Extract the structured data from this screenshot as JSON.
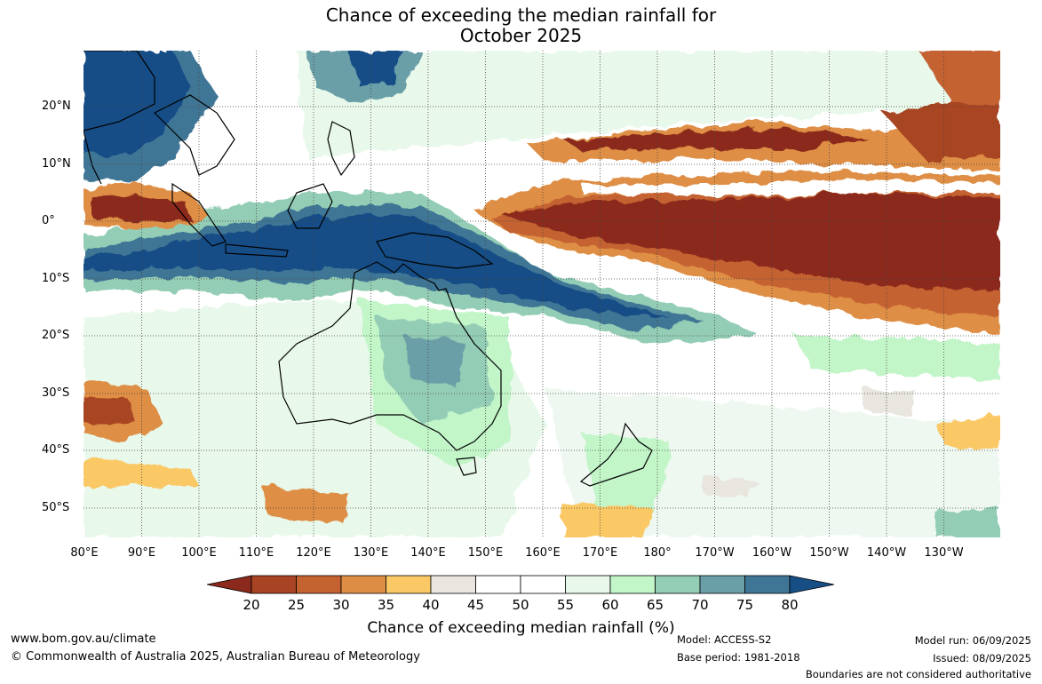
{
  "title_line1": "Chance of exceeding the median rainfall for",
  "title_line2": "October 2025",
  "lat_labels": [
    "20°N",
    "10°N",
    "0°",
    "10°S",
    "20°S",
    "30°S",
    "40°S",
    "50°S"
  ],
  "lon_labels": [
    "80°E",
    "90°E",
    "100°E",
    "110°E",
    "120°E",
    "130°E",
    "140°E",
    "150°E",
    "160°E",
    "170°E",
    "180°",
    "170°W",
    "160°W",
    "150°W",
    "140°W",
    "130°W"
  ],
  "colorbar": {
    "ticks": [
      "20",
      "25",
      "30",
      "35",
      "40",
      "45",
      "50",
      "55",
      "60",
      "65",
      "70",
      "75",
      "80"
    ],
    "colors": [
      "#8b2a1c",
      "#a84424",
      "#c46230",
      "#de8e44",
      "#fbc866",
      "#e9e6e0",
      "#ffffff",
      "#ffffff",
      "#e8f8ea",
      "#c2f5c8",
      "#94cdb5",
      "#6a9fa8",
      "#3f7695",
      "#174e86"
    ],
    "title": "Chance of exceeding median rainfall (%)"
  },
  "footer": {
    "website": "www.bom.gov.au/climate",
    "copyright": "© Commonwealth of Australia 2025, Australian Bureau of Meteorology",
    "model": "Model: ACCESS-S2",
    "base_period": "Base period: 1981-2018",
    "model_run": "Model run: 06/09/2025",
    "issued": "Issued: 08/09/2025",
    "boundaries": "Boundaries are not considered authoritative"
  }
}
